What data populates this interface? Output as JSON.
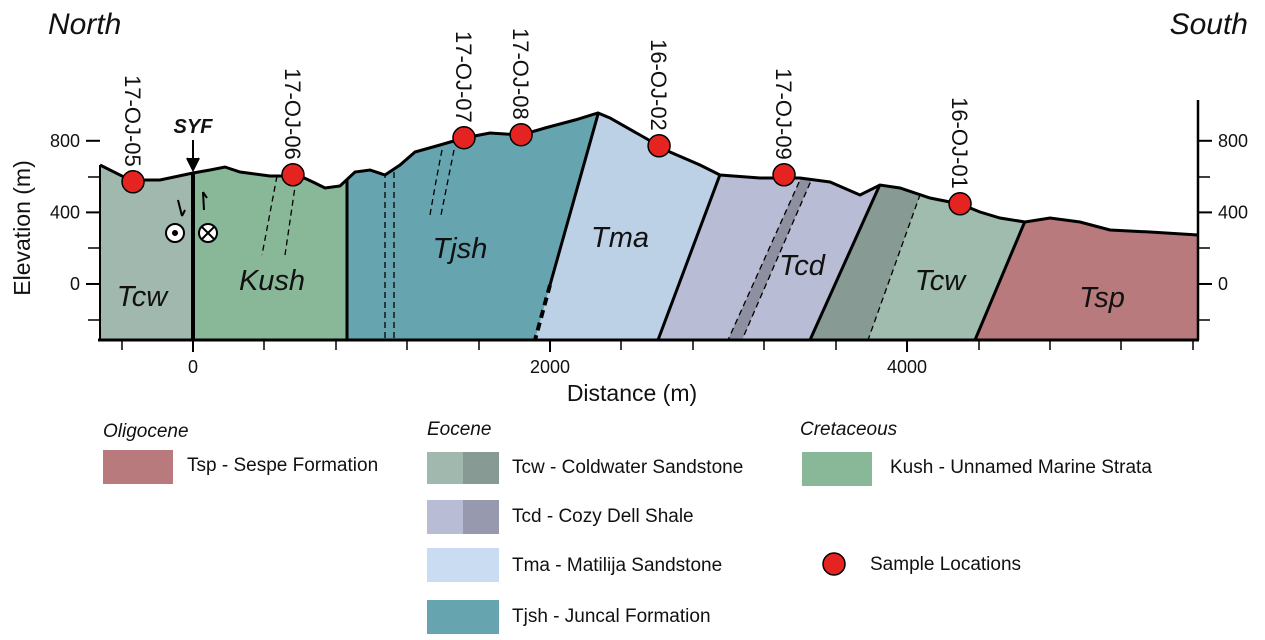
{
  "header": {
    "north": "North",
    "south": "South"
  },
  "section": {
    "x_label": "Distance (m)",
    "y_label": "Elevation (m)",
    "xlim": [
      -521,
      5630
    ],
    "ylim": [
      -313,
      1000
    ],
    "xticks": [
      0,
      2000,
      4000
    ],
    "yticks": [
      0,
      400,
      800
    ],
    "fault": "SYF",
    "units": [
      "Tcw",
      "Kush",
      "Tjsh",
      "Tma",
      "Tcd",
      "Tcw",
      "Tsp"
    ],
    "samples": [
      {
        "label": "17-OJ-05",
        "distance": -336,
        "elevation": 571
      },
      {
        "label": "17-OJ-06",
        "distance": 560,
        "elevation": 610
      },
      {
        "label": "17-OJ-07",
        "distance": 1518,
        "elevation": 817
      },
      {
        "label": "17-OJ-08",
        "distance": 1838,
        "elevation": 834
      },
      {
        "label": "16-OJ-02",
        "distance": 2611,
        "elevation": 772
      },
      {
        "label": "17-OJ-09",
        "distance": 3311,
        "elevation": 610
      },
      {
        "label": "16-OJ-01",
        "distance": 4297,
        "elevation": 448
      }
    ]
  },
  "legend": {
    "groups": [
      "Oligocene",
      "Eocene",
      "Cretaceous"
    ],
    "items": [
      "Tsp - Sespe Formation",
      "Tcw - Coldwater Sandstone",
      "Tcd - Cozy Dell Shale",
      "Tma - Matilija Sandstone",
      "Tjsh - Juncal Formation",
      "Kush - Unnamed Marine Strata",
      "Sample Locations"
    ]
  }
}
